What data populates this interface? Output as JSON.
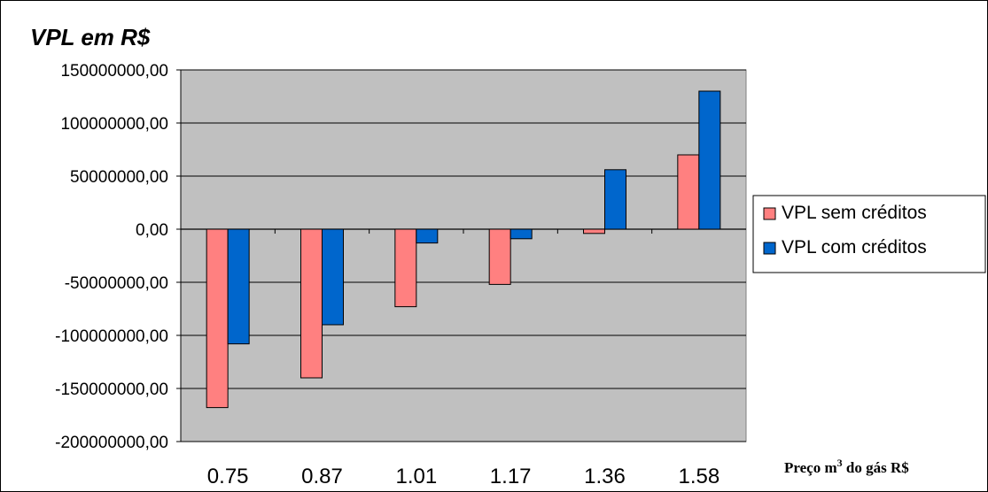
{
  "chart_data": {
    "type": "bar",
    "title": "VPL em R$",
    "xlabel_parts": {
      "before": "Preço m",
      "sup": "3",
      "after": " do gás R$"
    },
    "ylabel": "",
    "categories": [
      "0.75",
      "0.87",
      "1.01",
      "1.17",
      "1.36",
      "1.58"
    ],
    "ylim": [
      -200000000,
      150000000
    ],
    "yticks": [
      150000000,
      100000000,
      50000000,
      0,
      -50000000,
      -100000000,
      -150000000,
      -200000000
    ],
    "ytick_labels": [
      "150000000,00",
      "100000000,00",
      "50000000,00",
      "0,00",
      "-50000000,00",
      "-100000000,00",
      "-150000000,00",
      "-200000000,00"
    ],
    "grid": true,
    "legend_position": "right",
    "series": [
      {
        "name": "VPL sem créditos",
        "color": "#ff8080",
        "values": [
          -168000000,
          -140000000,
          -73000000,
          -52000000,
          -4000000,
          70000000
        ]
      },
      {
        "name": "VPL com créditos",
        "color": "#0066cc",
        "values": [
          -108000000,
          -90000000,
          -13000000,
          -9000000,
          56000000,
          130000000
        ]
      }
    ],
    "plot_background": "#c0c0c0"
  }
}
